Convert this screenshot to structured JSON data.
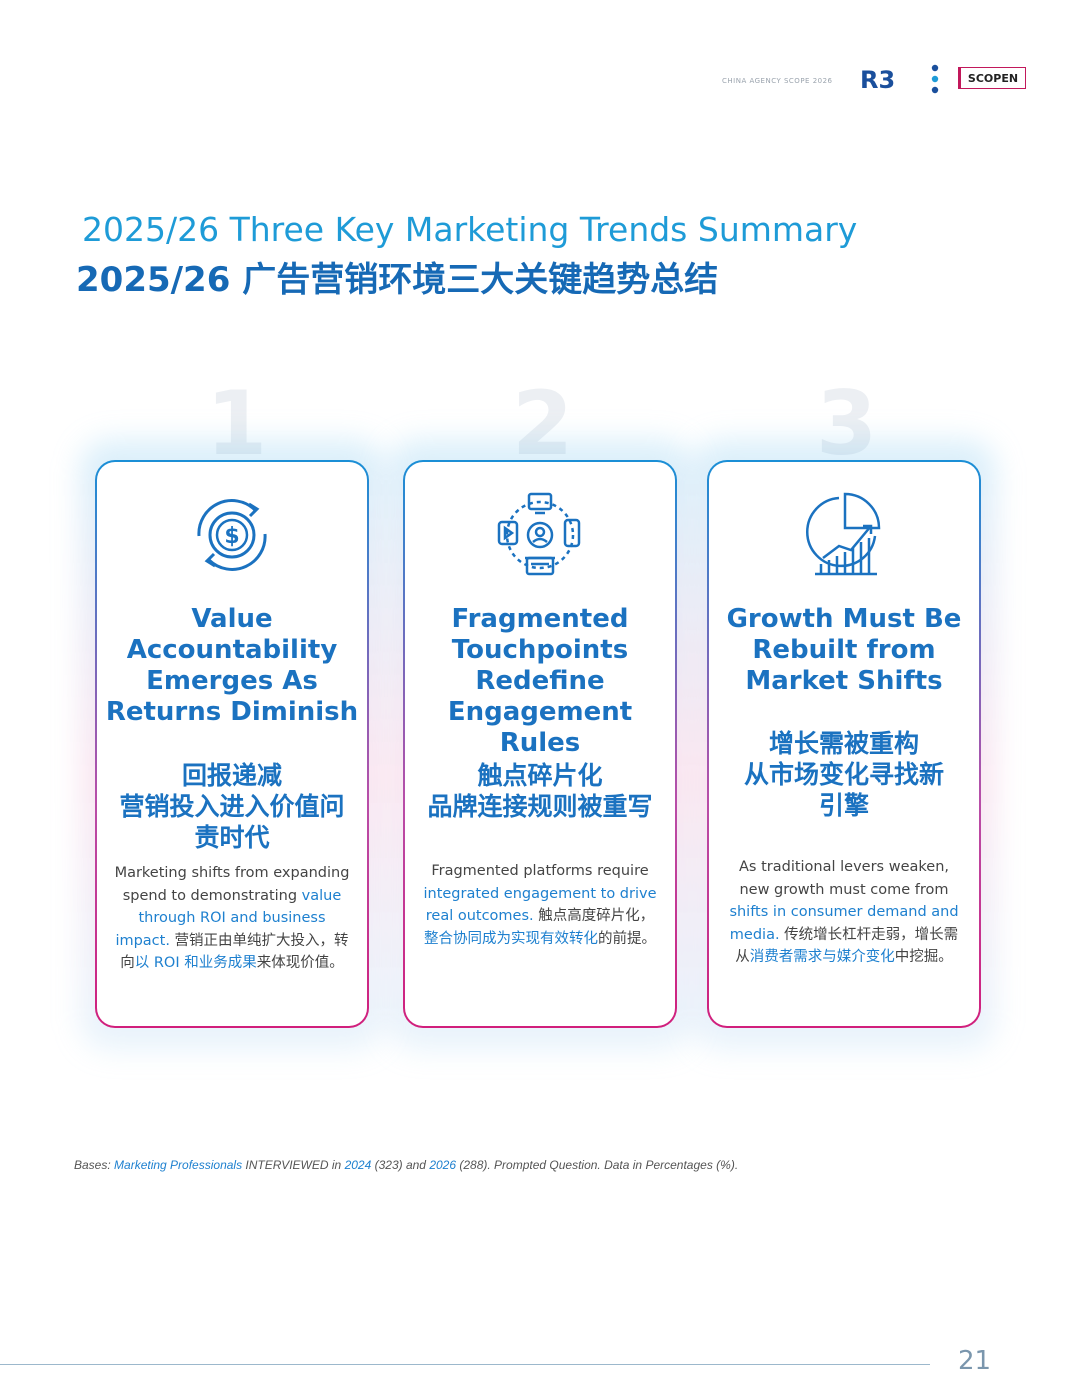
{
  "header": {
    "tag": "CHINA AGENCY SCOPE 2026",
    "logo_text": "R3",
    "brand": "SCOPEN"
  },
  "title": {
    "en": "2025/26 Three Key Marketing Trends Summary",
    "cn": "2025/26 广告营销环境三大关键趋势总结"
  },
  "cards": [
    {
      "number": "1",
      "icon": "dollar-cycle-icon",
      "title_en": "Value\nAccountability\nEmerges As\nReturns Diminish",
      "title_cn": "回报递减\n营销投入进入价值问\n责时代",
      "body": [
        {
          "t": "Marketing shifts from expanding spend to demonstrating ",
          "hl": false
        },
        {
          "t": "value through ROI and business impact.",
          "hl": true
        },
        {
          "t": " 营销正由单纯扩大投入，转向",
          "hl": false
        },
        {
          "t": "以 ROI 和业务成果",
          "hl": true
        },
        {
          "t": "来体现价值。",
          "hl": false
        }
      ]
    },
    {
      "number": "2",
      "icon": "touchpoints-network-icon",
      "title_en": "Fragmented\nTouchpoints\nRedefine\nEngagement Rules",
      "title_cn": "触点碎片化\n品牌连接规则被重写",
      "body": [
        {
          "t": "Fragmented platforms require ",
          "hl": false
        },
        {
          "t": "integrated engagement to drive real outcomes.",
          "hl": true
        },
        {
          "t": " 触点高度碎片化，",
          "hl": false
        },
        {
          "t": "整合协同成为实现有效转化",
          "hl": true
        },
        {
          "t": "的前提。",
          "hl": false
        }
      ]
    },
    {
      "number": "3",
      "icon": "growth-chart-icon",
      "title_en": "Growth Must Be\nRebuilt from\nMarket Shifts",
      "title_cn": "增长需被重构\n从市场变化寻找新\n引擎",
      "body": [
        {
          "t": "As traditional levers weaken, new growth must come from ",
          "hl": false
        },
        {
          "t": "shifts in consumer demand and media.",
          "hl": true
        },
        {
          "t": " 传统增长杠杆走弱，增长需从",
          "hl": false
        },
        {
          "t": "消费者需求与媒介变化",
          "hl": true
        },
        {
          "t": "中挖掘。",
          "hl": false
        }
      ]
    }
  ],
  "footnote": {
    "p1": "Bases: ",
    "p2": "Marketing Professionals",
    "p3": " INTERVIEWED in ",
    "p4": "2024",
    "p5": " (323) and ",
    "p6": "2026",
    "p7": " (288). Prompted Question. Data in Percentages (%)."
  },
  "page_number": "21",
  "colors": {
    "primary_blue": "#1b72c0",
    "light_blue": "#1e9bd7",
    "accent_pink": "#d11f7c"
  }
}
